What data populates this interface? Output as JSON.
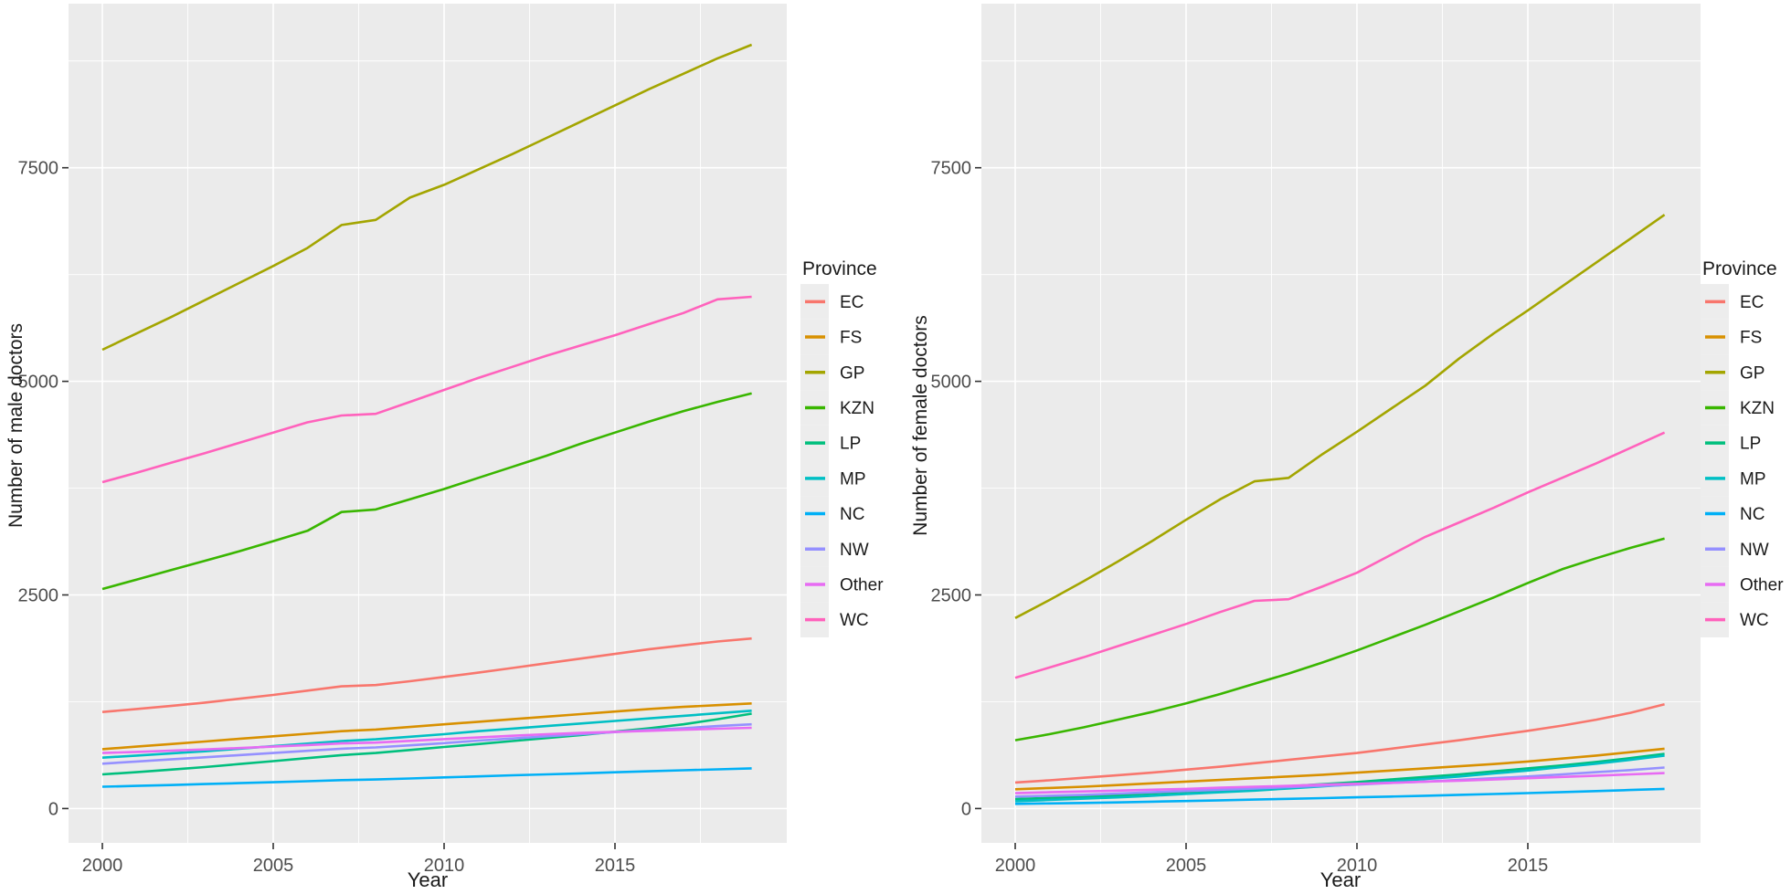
{
  "figure": {
    "background": "#FFFFFF",
    "panel_background": "#EBEBEB",
    "grid_color": "#FFFFFF",
    "tick_label_color": "#4D4D4D",
    "text_color": "#1A1A1A",
    "legend_key_background": "#EDEDED"
  },
  "chart_data": [
    {
      "type": "line",
      "title": "",
      "xlabel": "Year",
      "ylabel": "Number of male doctors",
      "legend_title": "Province",
      "legend_position": "right",
      "grid": true,
      "ylim": [
        0,
        9400
      ],
      "xlim": [
        2000,
        2019
      ],
      "xticks": [
        2000,
        2005,
        2010,
        2015
      ],
      "yticks": [
        0,
        2500,
        5000,
        7500
      ],
      "x": [
        2000,
        2001,
        2002,
        2003,
        2004,
        2005,
        2006,
        2007,
        2008,
        2009,
        2010,
        2011,
        2012,
        2013,
        2014,
        2015,
        2016,
        2017,
        2018,
        2019
      ],
      "series": [
        {
          "name": "EC",
          "color": "#F8766D",
          "values": [
            1130,
            1165,
            1200,
            1240,
            1285,
            1330,
            1380,
            1430,
            1445,
            1490,
            1540,
            1590,
            1645,
            1700,
            1755,
            1810,
            1865,
            1910,
            1955,
            1990
          ]
        },
        {
          "name": "FS",
          "color": "#D89000",
          "values": [
            695,
            725,
            755,
            785,
            815,
            845,
            875,
            905,
            925,
            955,
            985,
            1015,
            1045,
            1075,
            1105,
            1135,
            1165,
            1190,
            1210,
            1230
          ]
        },
        {
          "name": "GP",
          "color": "#A3A500",
          "values": [
            5370,
            5560,
            5750,
            5950,
            6150,
            6350,
            6560,
            6830,
            6890,
            7150,
            7300,
            7480,
            7660,
            7850,
            8040,
            8230,
            8420,
            8600,
            8780,
            8940
          ]
        },
        {
          "name": "KZN",
          "color": "#39B600",
          "values": [
            2570,
            2680,
            2790,
            2900,
            3010,
            3130,
            3250,
            3470,
            3500,
            3620,
            3740,
            3870,
            4000,
            4130,
            4270,
            4400,
            4530,
            4650,
            4760,
            4860
          ]
        },
        {
          "name": "LP",
          "color": "#00BF7D",
          "values": [
            400,
            425,
            455,
            485,
            520,
            555,
            590,
            625,
            650,
            685,
            720,
            755,
            790,
            825,
            860,
            900,
            940,
            985,
            1045,
            1110
          ]
        },
        {
          "name": "MP",
          "color": "#00BFC4",
          "values": [
            595,
            620,
            645,
            670,
            700,
            730,
            760,
            790,
            810,
            840,
            870,
            905,
            935,
            965,
            995,
            1025,
            1055,
            1085,
            1115,
            1145
          ]
        },
        {
          "name": "NC",
          "color": "#00B0F6",
          "values": [
            255,
            265,
            275,
            286,
            297,
            308,
            320,
            332,
            340,
            352,
            364,
            376,
            389,
            400,
            412,
            424,
            436,
            448,
            459,
            470
          ]
        },
        {
          "name": "NW",
          "color": "#9590FF",
          "values": [
            525,
            550,
            575,
            600,
            625,
            650,
            675,
            700,
            715,
            740,
            765,
            795,
            820,
            845,
            870,
            895,
            920,
            940,
            965,
            985
          ]
        },
        {
          "name": "Other",
          "color": "#E76BF3",
          "values": [
            650,
            663,
            677,
            692,
            708,
            725,
            743,
            762,
            772,
            792,
            812,
            832,
            852,
            870,
            885,
            898,
            910,
            922,
            934,
            945
          ]
        },
        {
          "name": "WC",
          "color": "#FF62BC",
          "values": [
            3820,
            3930,
            4045,
            4160,
            4280,
            4400,
            4520,
            4600,
            4620,
            4760,
            4900,
            5040,
            5170,
            5300,
            5420,
            5540,
            5670,
            5800,
            5960,
            5990
          ]
        }
      ]
    },
    {
      "type": "line",
      "title": "",
      "xlabel": "Year",
      "ylabel": "Number of female doctors",
      "legend_title": "Province",
      "legend_position": "right",
      "grid": true,
      "ylim": [
        0,
        9400
      ],
      "xlim": [
        2000,
        2019
      ],
      "xticks": [
        2000,
        2005,
        2010,
        2015
      ],
      "yticks": [
        0,
        2500,
        5000,
        7500
      ],
      "x": [
        2000,
        2001,
        2002,
        2003,
        2004,
        2005,
        2006,
        2007,
        2008,
        2009,
        2010,
        2011,
        2012,
        2013,
        2014,
        2015,
        2016,
        2017,
        2018,
        2019
      ],
      "series": [
        {
          "name": "EC",
          "color": "#F8766D",
          "values": [
            305,
            330,
            360,
            390,
            420,
            455,
            490,
            530,
            570,
            610,
            650,
            700,
            750,
            800,
            855,
            910,
            970,
            1040,
            1120,
            1220
          ]
        },
        {
          "name": "FS",
          "color": "#D89000",
          "values": [
            225,
            240,
            255,
            275,
            295,
            315,
            335,
            355,
            375,
            395,
            420,
            445,
            470,
            495,
            520,
            550,
            585,
            620,
            660,
            700
          ]
        },
        {
          "name": "GP",
          "color": "#A3A500",
          "values": [
            2230,
            2440,
            2660,
            2890,
            3130,
            3380,
            3620,
            3830,
            3870,
            4150,
            4410,
            4680,
            4950,
            5270,
            5560,
            5830,
            6110,
            6390,
            6670,
            6950
          ]
        },
        {
          "name": "KZN",
          "color": "#39B600",
          "values": [
            800,
            870,
            950,
            1040,
            1130,
            1230,
            1340,
            1460,
            1580,
            1710,
            1850,
            2000,
            2150,
            2310,
            2470,
            2640,
            2800,
            2930,
            3050,
            3160
          ]
        },
        {
          "name": "LP",
          "color": "#00BF7D",
          "values": [
            110,
            125,
            140,
            155,
            175,
            195,
            215,
            235,
            260,
            285,
            310,
            340,
            370,
            400,
            435,
            470,
            505,
            545,
            590,
            640
          ]
        },
        {
          "name": "MP",
          "color": "#00BFC4",
          "values": [
            85,
            100,
            115,
            130,
            150,
            170,
            190,
            210,
            235,
            260,
            285,
            315,
            345,
            375,
            410,
            445,
            485,
            525,
            570,
            620
          ]
        },
        {
          "name": "NC",
          "color": "#00B0F6",
          "values": [
            55,
            60,
            65,
            72,
            80,
            88,
            96,
            105,
            113,
            122,
            131,
            140,
            150,
            160,
            170,
            181,
            192,
            204,
            217,
            230
          ]
        },
        {
          "name": "NW",
          "color": "#9590FF",
          "values": [
            140,
            150,
            160,
            175,
            190,
            205,
            220,
            235,
            250,
            265,
            280,
            300,
            315,
            335,
            355,
            375,
            400,
            425,
            450,
            480
          ]
        },
        {
          "name": "Other",
          "color": "#E76BF3",
          "values": [
            180,
            190,
            200,
            210,
            220,
            230,
            245,
            255,
            265,
            280,
            290,
            300,
            315,
            325,
            340,
            355,
            370,
            385,
            400,
            415
          ]
        },
        {
          "name": "WC",
          "color": "#FF62BC",
          "values": [
            1530,
            1650,
            1770,
            1900,
            2030,
            2160,
            2300,
            2430,
            2450,
            2600,
            2760,
            2970,
            3180,
            3350,
            3520,
            3700,
            3870,
            4040,
            4220,
            4400
          ]
        }
      ]
    }
  ]
}
